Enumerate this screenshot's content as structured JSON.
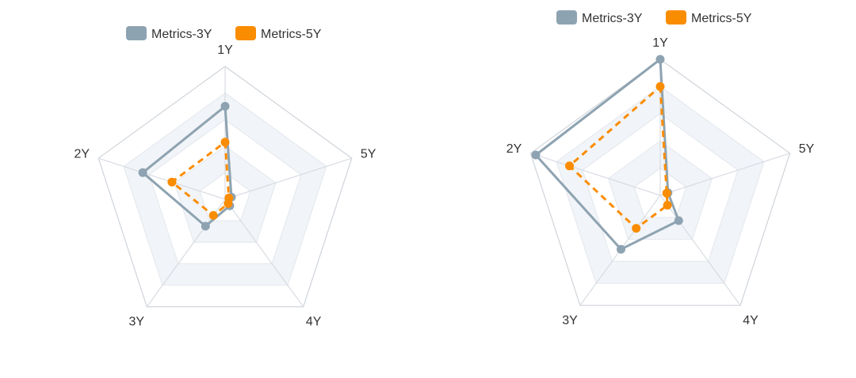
{
  "chart_data": [
    {
      "type": "radar",
      "indicators": [
        "1Y",
        "5Y",
        "4Y",
        "3Y",
        "2Y"
      ],
      "max": 10,
      "split_number": 5,
      "legend": {
        "position": "top-center"
      },
      "series": [
        {
          "name": "Metrics-3Y",
          "color": "#8ea3b1",
          "line_style": "solid",
          "values": [
            7.0,
            0.5,
            0.6,
            2.5,
            6.5
          ]
        },
        {
          "name": "Metrics-5Y",
          "color": "#fa8c00",
          "line_style": "dashed",
          "values": [
            4.3,
            0.3,
            0.4,
            1.5,
            4.2
          ]
        }
      ]
    },
    {
      "type": "radar",
      "indicators": [
        "1Y",
        "5Y",
        "4Y",
        "3Y",
        "2Y"
      ],
      "max": 10,
      "split_number": 5,
      "legend": {
        "position": "top-center"
      },
      "series": [
        {
          "name": "Metrics-3Y",
          "color": "#8ea3b1",
          "line_style": "solid",
          "values": [
            10.0,
            0.6,
            2.3,
            4.9,
            9.6
          ]
        },
        {
          "name": "Metrics-5Y",
          "color": "#fa8c00",
          "line_style": "dashed",
          "values": [
            8.0,
            0.5,
            0.9,
            3.0,
            7.0
          ]
        }
      ]
    }
  ]
}
